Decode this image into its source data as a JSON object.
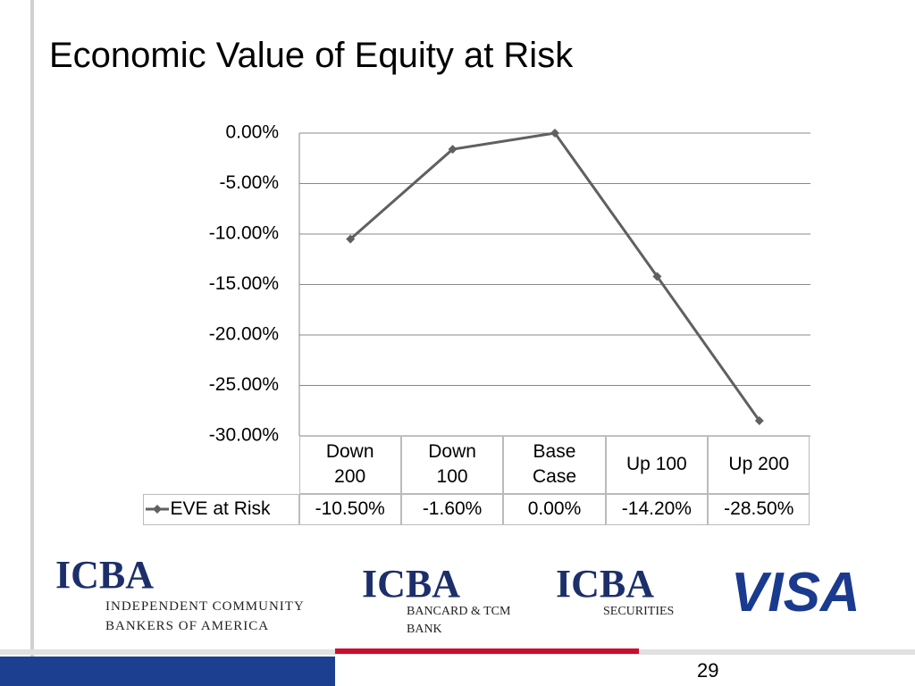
{
  "title": "Economic Value of Equity at Risk",
  "chart_data": {
    "type": "line",
    "categories": [
      "Down 200",
      "Down 100",
      "Base Case",
      "Up 100",
      "Up 200"
    ],
    "series": [
      {
        "name": "EVE at Risk",
        "color": "#606060",
        "values": [
          -10.5,
          -1.6,
          0,
          -14.2,
          -28.5
        ],
        "value_labels": [
          "-10.50%",
          "-1.60%",
          "0.00%",
          "-14.20%",
          "-28.50%"
        ]
      }
    ],
    "ylim": [
      -30,
      0
    ],
    "yticks": [
      {
        "value": 0,
        "label": "0.00%"
      },
      {
        "value": -5,
        "label": "-5.00%"
      },
      {
        "value": -10,
        "label": "-10.00%"
      },
      {
        "value": -15,
        "label": "-15.00%"
      },
      {
        "value": -20,
        "label": "-20.00%"
      },
      {
        "value": -25,
        "label": "-25.00%"
      },
      {
        "value": -30,
        "label": "-30.00%"
      }
    ],
    "grid": true
  },
  "logos": {
    "icba": [
      "ICBA",
      "ICBA",
      "ICBA"
    ],
    "icba_text": "Independent Community Bankers of America",
    "bancard": "Bancard & TCM Bank",
    "securities": "Securities",
    "visa": "VISA"
  },
  "page_number": "29"
}
